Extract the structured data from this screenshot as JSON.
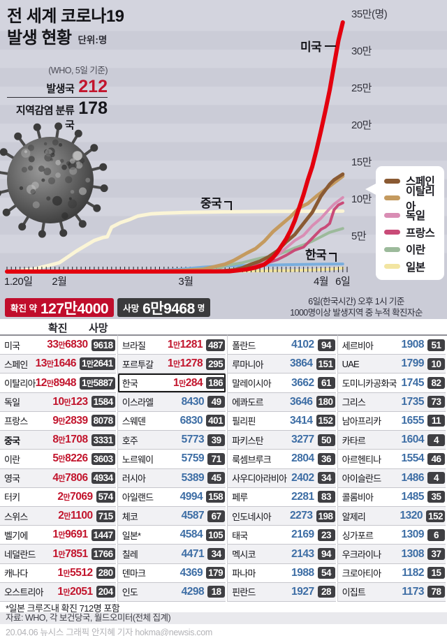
{
  "title": {
    "line1": "전 세계 코로나19",
    "line2": "발생 현황",
    "unit": "단위:명"
  },
  "who_box": {
    "note": "(WHO, 5일 기준)",
    "row1_label": "발생국",
    "row1_value": "212",
    "row2_label": "지역감염 분류국",
    "row2_value": "178"
  },
  "chart_data": {
    "type": "line",
    "title": "전 세계 코로나19 발생 현황",
    "unit": "명",
    "x_range_days": 78,
    "ylim_10k": [
      0,
      35
    ],
    "grid": "horizontal-bands",
    "legend_position": "right",
    "y_ticks": [
      {
        "label": "35만(명)",
        "value": 35
      },
      {
        "label": "30만",
        "value": 30
      },
      {
        "label": "25만",
        "value": 25
      },
      {
        "label": "20만",
        "value": 20
      },
      {
        "label": "15만",
        "value": 15
      },
      {
        "label": "10만",
        "value": 10
      },
      {
        "label": "5만",
        "value": 5
      }
    ],
    "x_ticks": [
      {
        "label": "1.20일",
        "day": 0
      },
      {
        "label": "2월",
        "day": 12
      },
      {
        "label": "3월",
        "day": 41
      },
      {
        "label": "4월",
        "day": 72
      },
      {
        "label": "6일",
        "day": 77
      }
    ],
    "annotations": [
      {
        "text": "미국",
        "connector": "dash"
      },
      {
        "text": "중국",
        "connector": "corner"
      },
      {
        "text": "한국",
        "connector": "corner"
      }
    ],
    "legend": [
      {
        "label": "스페인",
        "color": "#8a5a33"
      },
      {
        "label": "이탈리아",
        "color": "#c49a5f"
      },
      {
        "label": "독일",
        "color": "#d98db4"
      },
      {
        "label": "프랑스",
        "color": "#c94b78"
      },
      {
        "label": "이란",
        "color": "#9cba9b"
      },
      {
        "label": "일본",
        "color": "#f2e5a2"
      }
    ],
    "series": [
      {
        "name": "중국",
        "color": "#fbf5d6",
        "width": 5,
        "points": [
          [
            0,
            0.03
          ],
          [
            2,
            0.06
          ],
          [
            4,
            0.2
          ],
          [
            6,
            0.3
          ],
          [
            8,
            0.6
          ],
          [
            10,
            0.9
          ],
          [
            12,
            1.2
          ],
          [
            14,
            2.0
          ],
          [
            16,
            2.8
          ],
          [
            18,
            3.5
          ],
          [
            20,
            4.2
          ],
          [
            22,
            4.6
          ],
          [
            23,
            4.7
          ],
          [
            24,
            6.0
          ],
          [
            26,
            6.6
          ],
          [
            28,
            7.0
          ],
          [
            30,
            7.5
          ],
          [
            33,
            7.8
          ],
          [
            36,
            7.9
          ],
          [
            41,
            8.0
          ],
          [
            50,
            8.08
          ],
          [
            60,
            8.12
          ],
          [
            70,
            8.15
          ],
          [
            77,
            8.17
          ]
        ]
      },
      {
        "name": "일본",
        "color": "#f2e5a2",
        "width": 4,
        "points": [
          [
            0,
            0
          ],
          [
            20,
            0.01
          ],
          [
            31,
            0.01
          ],
          [
            41,
            0.03
          ],
          [
            50,
            0.05
          ],
          [
            55,
            0.08
          ],
          [
            60,
            0.1
          ],
          [
            65,
            0.14
          ],
          [
            70,
            0.22
          ],
          [
            74,
            0.3
          ],
          [
            77,
            0.46
          ]
        ]
      },
      {
        "name": "한국",
        "color": "#79aede",
        "width": 4,
        "points": [
          [
            0,
            0
          ],
          [
            28,
            0.003
          ],
          [
            31,
            0.01
          ],
          [
            34,
            0.08
          ],
          [
            37,
            0.2
          ],
          [
            40,
            0.32
          ],
          [
            41,
            0.38
          ],
          [
            43,
            0.5
          ],
          [
            45,
            0.6
          ],
          [
            47,
            0.67
          ],
          [
            50,
            0.75
          ],
          [
            53,
            0.8
          ],
          [
            56,
            0.82
          ],
          [
            60,
            0.87
          ],
          [
            64,
            0.93
          ],
          [
            68,
            0.97
          ],
          [
            72,
            1.0
          ],
          [
            77,
            1.03
          ]
        ]
      },
      {
        "name": "이란",
        "color": "#9cba9b",
        "width": 4,
        "points": [
          [
            0,
            0
          ],
          [
            40,
            0.01
          ],
          [
            42,
            0.03
          ],
          [
            44,
            0.09
          ],
          [
            46,
            0.15
          ],
          [
            48,
            0.25
          ],
          [
            50,
            0.8
          ],
          [
            52,
            1.0
          ],
          [
            54,
            1.2
          ],
          [
            56,
            1.5
          ],
          [
            58,
            1.8
          ],
          [
            60,
            2.0
          ],
          [
            62,
            2.3
          ],
          [
            64,
            2.7
          ],
          [
            66,
            3.2
          ],
          [
            68,
            3.6
          ],
          [
            70,
            4.1
          ],
          [
            72,
            4.7
          ],
          [
            74,
            5.3
          ],
          [
            77,
            5.82
          ]
        ]
      },
      {
        "name": "독일",
        "color": "#d98db4",
        "width": 4,
        "points": [
          [
            0,
            0
          ],
          [
            41,
            0.01
          ],
          [
            47,
            0.08
          ],
          [
            50,
            0.12
          ],
          [
            52,
            0.24
          ],
          [
            54,
            0.45
          ],
          [
            56,
            0.63
          ],
          [
            58,
            1.1
          ],
          [
            60,
            1.6
          ],
          [
            62,
            2.2
          ],
          [
            64,
            3.2
          ],
          [
            66,
            4.2
          ],
          [
            68,
            4.9
          ],
          [
            70,
            6.2
          ],
          [
            72,
            7.2
          ],
          [
            74,
            8.5
          ],
          [
            75,
            9.1
          ],
          [
            77,
            10.01
          ]
        ]
      },
      {
        "name": "프랑스",
        "color": "#c94b78",
        "width": 4,
        "points": [
          [
            0,
            0
          ],
          [
            41,
            0.01
          ],
          [
            47,
            0.06
          ],
          [
            50,
            0.12
          ],
          [
            52,
            0.23
          ],
          [
            54,
            0.45
          ],
          [
            56,
            0.66
          ],
          [
            58,
            0.9
          ],
          [
            60,
            1.25
          ],
          [
            62,
            1.6
          ],
          [
            64,
            2.2
          ],
          [
            66,
            2.9
          ],
          [
            68,
            3.3
          ],
          [
            70,
            4.5
          ],
          [
            72,
            5.7
          ],
          [
            73,
            6.0
          ],
          [
            74,
            6.5
          ],
          [
            75,
            8.35
          ],
          [
            76,
            9.0
          ],
          [
            77,
            9.28
          ]
        ]
      },
      {
        "name": "이탈리아",
        "color": "#c49a5f",
        "width": 5,
        "points": [
          [
            0,
            0
          ],
          [
            31,
            0.001
          ],
          [
            34,
            0.02
          ],
          [
            38,
            0.09
          ],
          [
            41,
            0.17
          ],
          [
            43,
            0.25
          ],
          [
            45,
            0.32
          ],
          [
            48,
            0.73
          ],
          [
            50,
            1.0
          ],
          [
            52,
            1.5
          ],
          [
            55,
            2.5
          ],
          [
            57,
            3.1
          ],
          [
            59,
            4.1
          ],
          [
            61,
            5.4
          ],
          [
            63,
            6.4
          ],
          [
            65,
            7.4
          ],
          [
            67,
            8.6
          ],
          [
            69,
            9.2
          ],
          [
            71,
            10.2
          ],
          [
            73,
            11.1
          ],
          [
            75,
            12.0
          ],
          [
            77,
            12.89
          ]
        ]
      },
      {
        "name": "스페인",
        "color": "#8a5a33",
        "width": 5,
        "points": [
          [
            0,
            0
          ],
          [
            41,
            0.01
          ],
          [
            45,
            0.02
          ],
          [
            48,
            0.05
          ],
          [
            50,
            0.12
          ],
          [
            52,
            0.23
          ],
          [
            54,
            0.52
          ],
          [
            56,
            1.0
          ],
          [
            58,
            1.4
          ],
          [
            60,
            2.0
          ],
          [
            62,
            2.8
          ],
          [
            64,
            4.0
          ],
          [
            66,
            5.0
          ],
          [
            68,
            6.5
          ],
          [
            70,
            8.0
          ],
          [
            72,
            10.2
          ],
          [
            74,
            11.8
          ],
          [
            75,
            12.4
          ],
          [
            77,
            13.16
          ]
        ]
      },
      {
        "name": "미국",
        "color": "#e3000e",
        "width": 6,
        "points": [
          [
            0,
            0
          ],
          [
            41,
            0.01
          ],
          [
            48,
            0.02
          ],
          [
            51,
            0.04
          ],
          [
            53,
            0.16
          ],
          [
            55,
            0.3
          ],
          [
            57,
            0.55
          ],
          [
            59,
            0.95
          ],
          [
            60,
            1.4
          ],
          [
            61,
            1.9
          ],
          [
            62,
            2.6
          ],
          [
            63,
            3.5
          ],
          [
            64,
            4.4
          ],
          [
            65,
            5.5
          ],
          [
            66,
            6.9
          ],
          [
            67,
            8.6
          ],
          [
            68,
            10.4
          ],
          [
            69,
            12.4
          ],
          [
            70,
            14.2
          ],
          [
            71,
            16.5
          ],
          [
            72,
            19.0
          ],
          [
            73,
            21.7
          ],
          [
            74,
            24.5
          ],
          [
            75,
            27.9
          ],
          [
            76,
            31.2
          ],
          [
            77,
            33.68
          ]
        ]
      }
    ]
  },
  "summary": {
    "confirmed_label": "확진 약",
    "confirmed_value": "127만4000",
    "deaths_label": "사망",
    "deaths_value": "6만9468",
    "deaths_unit": "명",
    "caption_line1": "6일(한국시간) 오후 1시 기준",
    "caption_line2": "1000명이상 발생지역 중 누적 확진자순"
  },
  "table": {
    "col_headers": {
      "confirmed": "확진",
      "deaths": "사망"
    },
    "groups": [
      [
        {
          "country": "미국",
          "confirmed": "33만6830",
          "deaths": "9618"
        },
        {
          "country": "스페인",
          "confirmed": "13만1646",
          "deaths": "1만2641"
        },
        {
          "country": "이탈리아",
          "confirmed": "12만8948",
          "deaths": "1만5887"
        },
        {
          "country": "독일",
          "confirmed": "10만123",
          "deaths": "1584"
        },
        {
          "country": "프랑스",
          "confirmed": "9만2839",
          "deaths": "8078"
        },
        {
          "country": "중국",
          "confirmed": "8만1708",
          "deaths": "3331",
          "bold": true
        },
        {
          "country": "이란",
          "confirmed": "5만8226",
          "deaths": "3603"
        },
        {
          "country": "영국",
          "confirmed": "4만7806",
          "deaths": "4934"
        },
        {
          "country": "터키",
          "confirmed": "2만7069",
          "deaths": "574"
        },
        {
          "country": "스위스",
          "confirmed": "2만1100",
          "deaths": "715"
        },
        {
          "country": "벨기에",
          "confirmed": "1만9691",
          "deaths": "1447"
        },
        {
          "country": "네덜란드",
          "confirmed": "1만7851",
          "deaths": "1766"
        },
        {
          "country": "캐나다",
          "confirmed": "1만5512",
          "deaths": "280"
        },
        {
          "country": "오스트리아",
          "confirmed": "1만2051",
          "deaths": "204"
        }
      ],
      [
        {
          "country": "브라질",
          "confirmed": "1만1281",
          "deaths": "487"
        },
        {
          "country": "포르투갈",
          "confirmed": "1만1278",
          "deaths": "295"
        },
        {
          "country": "한국",
          "confirmed": "1만284",
          "deaths": "186",
          "highlight": true
        },
        {
          "country": "이스라엘",
          "confirmed": "8430",
          "deaths": "49"
        },
        {
          "country": "스웨덴",
          "confirmed": "6830",
          "deaths": "401"
        },
        {
          "country": "호주",
          "confirmed": "5773",
          "deaths": "39"
        },
        {
          "country": "노르웨이",
          "confirmed": "5759",
          "deaths": "71"
        },
        {
          "country": "러시아",
          "confirmed": "5389",
          "deaths": "45"
        },
        {
          "country": "아일랜드",
          "confirmed": "4994",
          "deaths": "158"
        },
        {
          "country": "체코",
          "confirmed": "4587",
          "deaths": "67"
        },
        {
          "country": "일본*",
          "confirmed": "4584",
          "deaths": "105"
        },
        {
          "country": "칠레",
          "confirmed": "4471",
          "deaths": "34"
        },
        {
          "country": "덴마크",
          "confirmed": "4369",
          "deaths": "179"
        },
        {
          "country": "인도",
          "confirmed": "4298",
          "deaths": "18"
        }
      ],
      [
        {
          "country": "폴란드",
          "confirmed": "4102",
          "deaths": "94"
        },
        {
          "country": "루마니아",
          "confirmed": "3864",
          "deaths": "151"
        },
        {
          "country": "말레이시아",
          "confirmed": "3662",
          "deaths": "61"
        },
        {
          "country": "에콰도르",
          "confirmed": "3646",
          "deaths": "180"
        },
        {
          "country": "필리핀",
          "confirmed": "3414",
          "deaths": "152"
        },
        {
          "country": "파키스탄",
          "confirmed": "3277",
          "deaths": "50"
        },
        {
          "country": "룩셈브루크",
          "confirmed": "2804",
          "deaths": "36"
        },
        {
          "country": "사우디아라비아",
          "confirmed": "2402",
          "deaths": "34"
        },
        {
          "country": "페루",
          "confirmed": "2281",
          "deaths": "83"
        },
        {
          "country": "인도네시아",
          "confirmed": "2273",
          "deaths": "198"
        },
        {
          "country": "태국",
          "confirmed": "2169",
          "deaths": "23"
        },
        {
          "country": "멕시코",
          "confirmed": "2143",
          "deaths": "94"
        },
        {
          "country": "파나마",
          "confirmed": "1988",
          "deaths": "54"
        },
        {
          "country": "핀란드",
          "confirmed": "1927",
          "deaths": "28"
        }
      ],
      [
        {
          "country": "세르비아",
          "confirmed": "1908",
          "deaths": "51"
        },
        {
          "country": "UAE",
          "confirmed": "1799",
          "deaths": "10"
        },
        {
          "country": "도미니카공화국",
          "confirmed": "1745",
          "deaths": "82"
        },
        {
          "country": "그리스",
          "confirmed": "1735",
          "deaths": "73"
        },
        {
          "country": "남아프리카",
          "confirmed": "1655",
          "deaths": "11"
        },
        {
          "country": "카타르",
          "confirmed": "1604",
          "deaths": "4"
        },
        {
          "country": "아르헨티나",
          "confirmed": "1554",
          "deaths": "46"
        },
        {
          "country": "아이슬란드",
          "confirmed": "1486",
          "deaths": "4"
        },
        {
          "country": "콜롬비아",
          "confirmed": "1485",
          "deaths": "35"
        },
        {
          "country": "알제리",
          "confirmed": "1320",
          "deaths": "152"
        },
        {
          "country": "싱가포르",
          "confirmed": "1309",
          "deaths": "6"
        },
        {
          "country": "우크라이나",
          "confirmed": "1308",
          "deaths": "37"
        },
        {
          "country": "크로아티아",
          "confirmed": "1182",
          "deaths": "15"
        },
        {
          "country": "이집트",
          "confirmed": "1173",
          "deaths": "78"
        }
      ]
    ]
  },
  "footnote": "*일본 크루즈내 확진 712명 포함",
  "source": "자료: WHO, 각 보건당국, 월드오미터(전체 집계)",
  "credit": "20.04.06 뉴시스 그래픽 안지혜 기자 hokma@newsis.com",
  "colors": {
    "background": "#cbccd7",
    "band": "#d3d4de",
    "accent_red": "#c00d2c",
    "badge_bg": "#3f3f43",
    "confirmed_red": "#c2152d",
    "confirmed_blue": "#3e6ea5"
  }
}
